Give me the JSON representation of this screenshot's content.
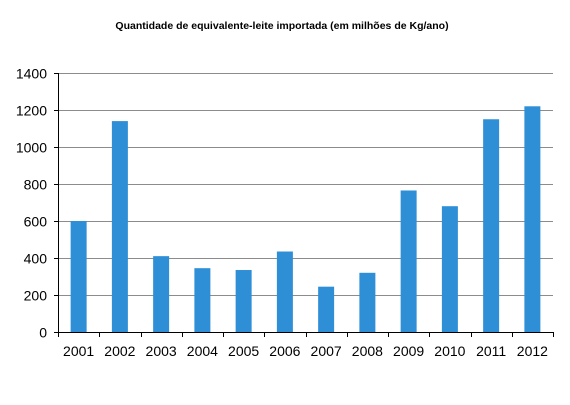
{
  "chart_data": {
    "type": "bar",
    "title": "Quantidade de equivalente-leite importada (em milhões de Kg/ano)",
    "xlabel": "",
    "ylabel": "",
    "categories": [
      "2001",
      "2002",
      "2003",
      "2004",
      "2005",
      "2006",
      "2007",
      "2008",
      "2009",
      "2010",
      "2011",
      "2012"
    ],
    "values": [
      600,
      1140,
      410,
      345,
      335,
      435,
      245,
      320,
      765,
      680,
      1150,
      1220
    ],
    "ylim": [
      0,
      1400
    ],
    "yticks": [
      0,
      200,
      400,
      600,
      800,
      1000,
      1200,
      1400
    ],
    "grid": true,
    "legend": "none",
    "bar_color": "#2e8fd6"
  }
}
